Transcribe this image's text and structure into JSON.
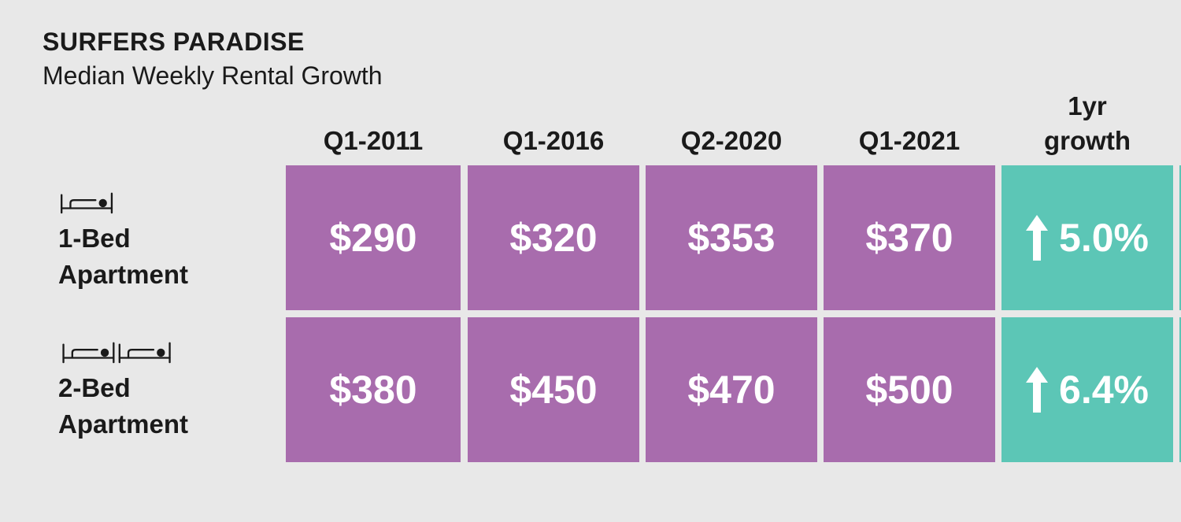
{
  "colors": {
    "background": "#e8e8e8",
    "value_cell": "#a86cad",
    "growth_cell": "#5cc6b6",
    "text": "#1a1a1a",
    "cell_text": "#ffffff"
  },
  "chart_data": {
    "type": "table",
    "title": "SURFERS PARADISE",
    "subtitle": "Median Weekly Rental Growth",
    "columns": [
      "Q1-2011",
      "Q1-2016",
      "Q2-2020",
      "Q1-2021"
    ],
    "growth_header": [
      "1yr",
      "growth"
    ],
    "rows": [
      {
        "icon": "single-bed-icon",
        "label": [
          "1-Bed",
          "Apartment"
        ],
        "values": [
          "$290",
          "$320",
          "$353",
          "$370"
        ],
        "growth": "5.0%"
      },
      {
        "icon": "double-bed-icon",
        "label": [
          "2-Bed",
          "Apartment"
        ],
        "values": [
          "$380",
          "$450",
          "$470",
          "$500"
        ],
        "growth": "6.4%"
      }
    ]
  }
}
